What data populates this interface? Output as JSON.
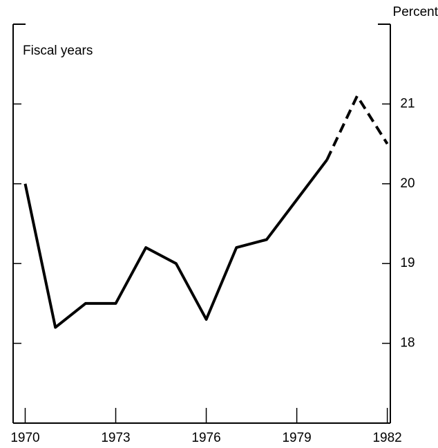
{
  "chart_data": {
    "type": "line",
    "y_axis_label": "Percent",
    "annotation": "Fiscal years",
    "x": [
      1970,
      1971,
      1972,
      1973,
      1974,
      1975,
      1976,
      1977,
      1978,
      1979,
      1980,
      1981,
      1982
    ],
    "series": [
      {
        "color": "#000000",
        "style": "solid",
        "values": [
          20.0,
          18.2,
          18.5,
          18.5,
          19.2,
          19.0,
          18.3,
          19.2,
          19.3,
          19.8,
          20.3,
          null,
          null
        ]
      },
      {
        "color": "#000000",
        "style": "dashed",
        "values": [
          null,
          null,
          null,
          null,
          null,
          null,
          null,
          null,
          null,
          null,
          20.3,
          21.1,
          20.5
        ]
      }
    ],
    "xlim": [
      1969.6,
      1982.1
    ],
    "xticks": [
      1970,
      1973,
      1976,
      1979,
      1982
    ],
    "ylim": [
      17,
      22
    ],
    "yticks": [
      18,
      19,
      20,
      21
    ],
    "y_axis_side": "right"
  }
}
